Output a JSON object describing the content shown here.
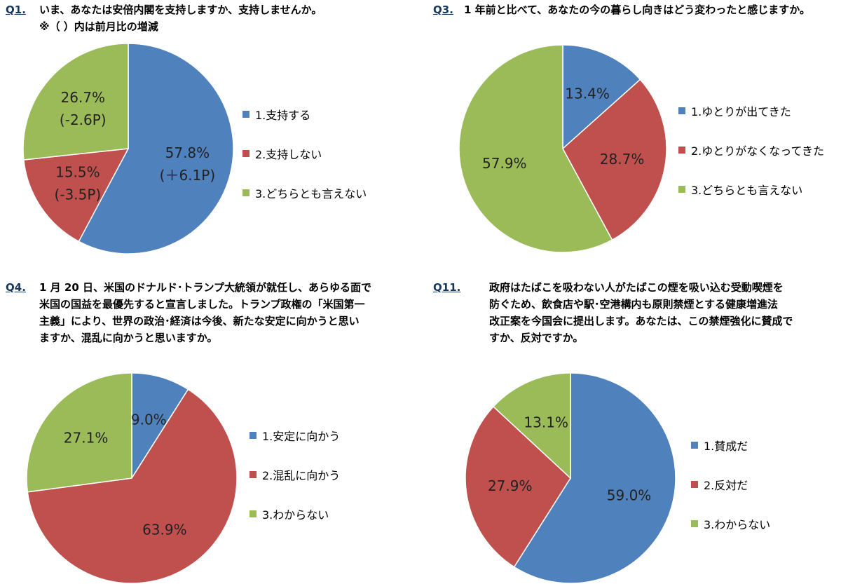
{
  "colors": {
    "blue": "#4f81bd",
    "red": "#c0504d",
    "green": "#9bbb59"
  },
  "q1": {
    "num": "Q1.",
    "lines": [
      "いま、あなたは安倍内閣を支持しますか、支持しませんか。",
      "※（ ）内は前月比の増減"
    ]
  },
  "q3": {
    "num": "Q3.",
    "lines": [
      "1 年前と比べて、あなたの今の暮らし向きはどう変わったと感じますか。"
    ]
  },
  "q4": {
    "num": "Q4.",
    "lines": [
      "1 月 20 日、米国のドナルド･トランプ大統領が就任し、あらゆる面で",
      "米国の国益を最優先すると宣言しました。トランプ政権の「米国第一",
      "主義」により、世界の政治･経済は今後、新たな安定に向かうと思い",
      "ますか、混乱に向かうと思いますか。"
    ]
  },
  "q11": {
    "num": "Q11.",
    "lines": [
      "政府はたばこを吸わない人がたばこの煙を吸い込む受動喫煙を",
      "防ぐため、飲食店や駅･空港構内も原則禁煙とする健康増進法",
      "改正案を今国会に提出します。あなたは、この禁煙強化に賛成で",
      "すか、反対ですか。"
    ]
  },
  "chart_data": [
    {
      "type": "pie",
      "categories": [
        "1.支持する",
        "2.支持しない",
        "3.どちらとも言えない"
      ],
      "values": [
        57.8,
        15.5,
        26.7
      ],
      "labels": [
        "57.8%",
        "15.5%",
        "26.7%"
      ],
      "change_labels": [
        "(＋6.1P)",
        "(-3.5P)",
        "(-2.6P)"
      ],
      "legend_position": "right"
    },
    {
      "type": "pie",
      "categories": [
        "1.ゆとりが出てきた",
        "2.ゆとりがなくなってきた",
        "3.どちらとも言えない"
      ],
      "values": [
        13.4,
        28.7,
        57.9
      ],
      "labels": [
        "13.4%",
        "28.7%",
        "57.9%"
      ],
      "legend_position": "right"
    },
    {
      "type": "pie",
      "categories": [
        "1.安定に向かう",
        "2.混乱に向かう",
        "3.わからない"
      ],
      "values": [
        9.0,
        63.9,
        27.1
      ],
      "labels": [
        "9.0%",
        "63.9%",
        "27.1%"
      ],
      "legend_position": "right"
    },
    {
      "type": "pie",
      "categories": [
        "1.賛成だ",
        "2.反対だ",
        "3.わからない"
      ],
      "values": [
        59.0,
        27.9,
        13.1
      ],
      "labels": [
        "59.0%",
        "27.9%",
        "13.1%"
      ],
      "legend_position": "right"
    }
  ]
}
